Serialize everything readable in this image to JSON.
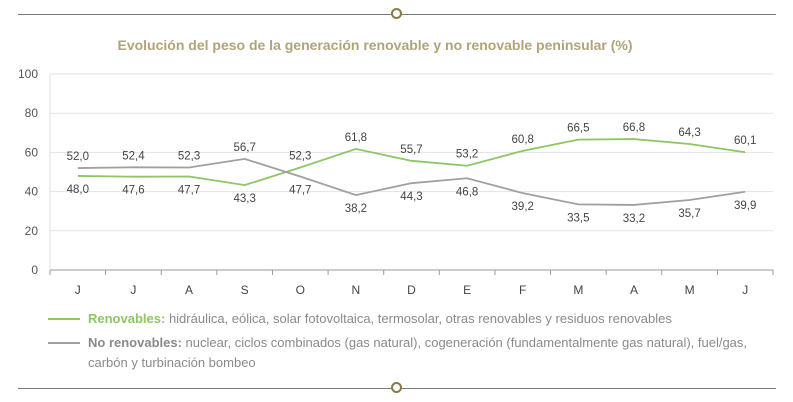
{
  "chart_data": {
    "type": "line",
    "title": "Evolución del peso de la generación renovable y no renovable peninsular (%)",
    "categories": [
      "J",
      "J",
      "A",
      "S",
      "O",
      "N",
      "D",
      "E",
      "F",
      "M",
      "A",
      "M",
      "J"
    ],
    "ylim": [
      0,
      100
    ],
    "yticks": [
      0,
      20,
      40,
      60,
      80,
      100
    ],
    "grid": true,
    "legend_position": "bottom",
    "series": [
      {
        "name": "Renovables",
        "description": "hidráulica, eólica, solar fotovoltaica, termosolar, otras renovables y residuos renovables",
        "color": "#8cc665",
        "values": [
          48.0,
          47.6,
          47.7,
          43.3,
          52.3,
          61.8,
          55.7,
          53.2,
          60.8,
          66.5,
          66.8,
          64.3,
          60.1
        ],
        "labels": [
          "48,0",
          "47,6",
          "47,7",
          "43,3",
          "52,3",
          "61,8",
          "55,7",
          "53,2",
          "60,8",
          "66,5",
          "66,8",
          "64,3",
          "60,1"
        ]
      },
      {
        "name": "No renovables",
        "description": "nuclear, ciclos combinados (gas natural), cogeneración (fundamentalmente gas natural), fuel/gas, carbón y turbinación bombeo",
        "color": "#a0a0a0",
        "values": [
          52.0,
          52.4,
          52.3,
          56.7,
          47.7,
          38.2,
          44.3,
          46.8,
          39.2,
          33.5,
          33.2,
          35.7,
          39.9
        ],
        "labels": [
          "52,0",
          "52,4",
          "52,3",
          "56,7",
          "47,7",
          "38,2",
          "44,3",
          "46,8",
          "39,2",
          "33,5",
          "33,2",
          "35,7",
          "39,9"
        ]
      }
    ]
  },
  "legend": {
    "renovables_name": "Renovables:",
    "renovables_desc": "hidráulica, eólica, solar fotovoltaica, termosolar, otras renovables y residuos renovables",
    "no_renovables_name": "No renovables:",
    "no_renovables_desc": "nuclear, ciclos combinados (gas natural), cogeneración (fundamentalmente gas natural), fuel/gas, carbón y turbinación bombeo"
  }
}
